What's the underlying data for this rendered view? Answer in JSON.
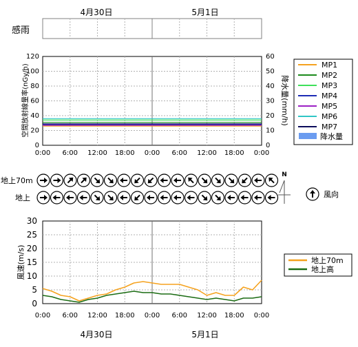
{
  "dates": [
    "4月30日",
    "5月1日"
  ],
  "rain_row_label": "感雨",
  "chart_data": [
    {
      "type": "line",
      "ylabel": "空間放射線量率(nGy/h)",
      "y2label": "降水量(mm/h)",
      "ylim": [
        0,
        120
      ],
      "yticks": [
        0,
        20,
        40,
        60,
        80,
        100,
        120
      ],
      "y2lim": [
        0,
        60
      ],
      "y2ticks": [
        0,
        10,
        20,
        30,
        40,
        50,
        60
      ],
      "xticks": [
        "0:00",
        "6:00",
        "12:00",
        "18:00",
        "0:00",
        "6:00",
        "12:00",
        "18:00",
        "0:00"
      ],
      "grid": true,
      "legend": "right",
      "series": [
        {
          "name": "MP1",
          "color": "#f5a21e",
          "values": [
            26,
            26,
            26,
            26,
            26,
            26,
            26,
            26,
            26
          ]
        },
        {
          "name": "MP2",
          "color": "#1a8a1a",
          "values": [
            31,
            31,
            31,
            31,
            31,
            31,
            31,
            31,
            31
          ]
        },
        {
          "name": "MP3",
          "color": "#3ee05a",
          "values": [
            34,
            34,
            34,
            34,
            34,
            34,
            34,
            34,
            34
          ]
        },
        {
          "name": "MP4",
          "color": "#1c2bb5",
          "values": [
            28,
            28,
            28,
            28,
            28,
            28,
            28,
            28,
            28
          ]
        },
        {
          "name": "MP5",
          "color": "#9b1fc4",
          "values": [
            27,
            27,
            27,
            27,
            27,
            27,
            27,
            27,
            27
          ]
        },
        {
          "name": "MP6",
          "color": "#2fc6c6",
          "values": [
            36,
            36,
            36,
            36,
            36,
            36,
            36,
            36,
            36
          ]
        },
        {
          "name": "MP7",
          "color": "#0a0a5a",
          "values": [
            29,
            29,
            29,
            29,
            29,
            29,
            29,
            29,
            29
          ]
        }
      ],
      "bar_series": {
        "name": "降水量",
        "color": "#6b9cf0",
        "values": []
      }
    },
    {
      "type": "line",
      "ylabel": "風速(m/s)",
      "ylim": [
        0,
        30
      ],
      "yticks": [
        0,
        5,
        10,
        15,
        20,
        25,
        30
      ],
      "xticks": [
        "0:00",
        "6:00",
        "12:00",
        "18:00",
        "0:00",
        "6:00",
        "12:00",
        "18:00",
        "0:00"
      ],
      "grid": true,
      "legend": "right",
      "x": [
        0,
        2,
        4,
        6,
        8,
        10,
        12,
        14,
        16,
        18,
        20,
        22,
        24,
        26,
        28,
        30,
        32,
        34,
        36,
        38,
        40,
        42,
        44,
        46,
        48
      ],
      "series": [
        {
          "name": "地上70m",
          "color": "#f5a21e",
          "values": [
            5.5,
            4.5,
            3,
            2.5,
            1,
            2,
            3,
            3.5,
            5,
            6,
            7.5,
            8,
            7.5,
            7,
            7,
            7,
            6,
            5,
            3,
            4,
            3,
            3,
            6,
            5,
            8.5
          ]
        },
        {
          "name": "地上高",
          "color": "#1a6b12",
          "values": [
            3,
            2.5,
            1.5,
            1,
            0.5,
            1.5,
            2,
            3,
            3.5,
            4,
            4.5,
            4,
            4,
            3.5,
            3.5,
            3,
            2.5,
            2,
            1.5,
            2,
            1.5,
            1,
            2,
            2,
            2.5
          ]
        }
      ]
    }
  ],
  "wind_dir": {
    "rows": [
      {
        "label": "地上70m",
        "dirs": [
          "E",
          "E",
          "NE",
          "NE",
          "SE",
          "SE",
          "W",
          "SW",
          "SW",
          "W",
          "W",
          "NW",
          "SE",
          "SE",
          "SE",
          "SW",
          "W",
          "NW"
        ]
      },
      {
        "label": "地上",
        "dirs": [
          "E",
          "W",
          "W",
          "W",
          "SE",
          "SE",
          "W",
          "SW",
          "W",
          "W",
          "W",
          "W",
          "SE",
          "SE",
          "W",
          "W",
          "W",
          "W"
        ]
      }
    ],
    "legend_label": "風向",
    "north_label": "N"
  },
  "colors": {
    "grid": "#b0b0b0",
    "axis": "#000000"
  }
}
